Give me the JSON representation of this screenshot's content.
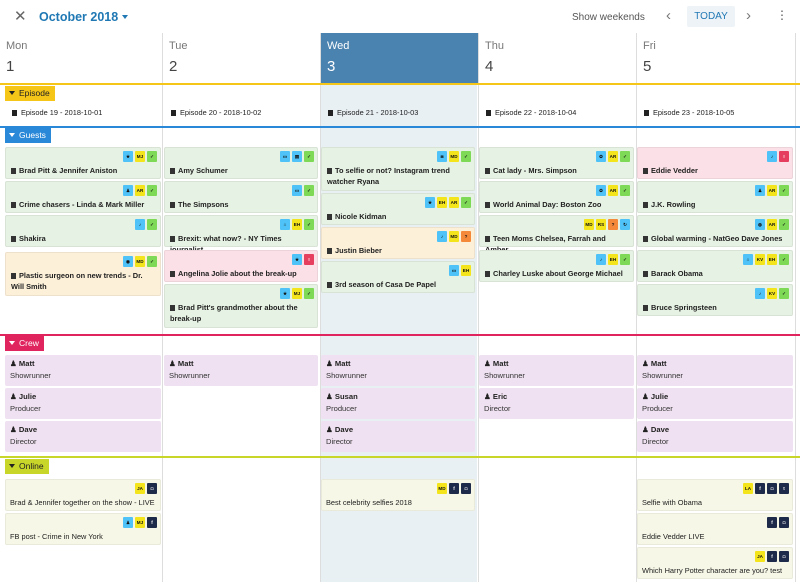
{
  "header": {
    "close_icon": "close-icon",
    "month_label": "October 2018",
    "show_weekends": "Show weekends",
    "today": "TODAY",
    "prev_icon": "chevron-left-icon",
    "next_icon": "chevron-right-icon",
    "more_icon": "more-vertical-icon"
  },
  "days": [
    {
      "name": "Mon",
      "num": "1"
    },
    {
      "name": "Tue",
      "num": "2"
    },
    {
      "name": "Wed",
      "num": "3",
      "active": true
    },
    {
      "name": "Thu",
      "num": "4"
    },
    {
      "name": "Fri",
      "num": "5"
    }
  ],
  "sections": {
    "episode": {
      "label": "Episode",
      "color": "#f5c518"
    },
    "guests": {
      "label": "Guests",
      "color": "#2a88d8"
    },
    "crew": {
      "label": "Crew",
      "color": "#e0245e"
    },
    "online": {
      "label": "Online",
      "color": "#c8d62a"
    }
  },
  "episodes": [
    "Episode 19 - 2018-10-01",
    "Episode 20 - 2018-10-02",
    "Episode 21 - 2018-10-03",
    "Episode 22 - 2018-10-04",
    "Episode 23 - 2018-10-05"
  ],
  "guests": [
    [
      {
        "title": "Brad Pitt & Jennifer Aniston",
        "color": "green",
        "tags": [
          "star",
          "MJ",
          "check"
        ]
      },
      {
        "title": "Crime chasers - Linda & Mark Miller",
        "color": "green",
        "tags": [
          "person",
          "AR",
          "check"
        ]
      },
      {
        "title": "Shakira",
        "color": "green",
        "tags": [
          "note",
          "check"
        ]
      },
      {
        "title": "Plastic surgeon on new trends - Dr. Will Smith",
        "color": "orange",
        "tags": [
          "mic",
          "MD",
          "check"
        ]
      }
    ],
    [
      {
        "title": "Amy Schumer",
        "color": "green",
        "tags": [
          "tv",
          "film",
          "check"
        ]
      },
      {
        "title": "The Simpsons",
        "color": "green",
        "tags": [
          "tv",
          "check"
        ]
      },
      {
        "title": "Brexit: what now? - NY Times journalist",
        "color": "green",
        "tags": [
          "bank",
          "EH",
          "check"
        ]
      },
      {
        "title": "Angelina Jolie about the break-up",
        "color": "pink",
        "tags": [
          "star",
          "excl"
        ]
      },
      {
        "title": "Brad Pitt's grandmother about the break-up",
        "color": "green",
        "tags": [
          "star",
          "MJ",
          "check"
        ]
      }
    ],
    [
      {
        "title": "To selfie or not? Instagram trend watcher Ryana",
        "color": "green",
        "tags": [
          "camera",
          "MD",
          "check"
        ]
      },
      {
        "title": "Nicole Kidman",
        "color": "green",
        "tags": [
          "star",
          "EH",
          "AR",
          "check"
        ]
      },
      {
        "title": "Justin Bieber",
        "color": "orange",
        "tags": [
          "note",
          "MD",
          "q"
        ]
      },
      {
        "title": "3rd season of Casa De Papel",
        "color": "green",
        "tags": [
          "tv",
          "EH"
        ]
      }
    ],
    [
      {
        "title": "Cat lady - Mrs. Simpson",
        "color": "green",
        "tags": [
          "paw",
          "AR",
          "check"
        ]
      },
      {
        "title": "World Animal Day: Boston Zoo",
        "color": "green",
        "tags": [
          "paw",
          "AR",
          "check"
        ]
      },
      {
        "title": "Teen Moms Chelsea, Farrah and Amber",
        "color": "green",
        "tags": [
          "MD",
          "RS",
          "q",
          "refresh"
        ]
      },
      {
        "title": "Charley Luske about George Michael",
        "color": "green",
        "tags": [
          "note",
          "EH",
          "check"
        ]
      }
    ],
    [
      {
        "title": "Eddie Vedder",
        "color": "pink",
        "tags": [
          "note",
          "excl"
        ]
      },
      {
        "title": "J.K. Rowling",
        "color": "green",
        "tags": [
          "person",
          "AR",
          "check"
        ]
      },
      {
        "title": "Global warming - NatGeo Dave Jones",
        "color": "green",
        "tags": [
          "globe",
          "AR",
          "check"
        ]
      },
      {
        "title": "Barack Obama",
        "color": "green",
        "tags": [
          "bank",
          "KV",
          "EH",
          "check"
        ]
      },
      {
        "title": "Bruce Springsteen",
        "color": "green",
        "tags": [
          "note",
          "KV",
          "check"
        ]
      }
    ]
  ],
  "crew": [
    [
      {
        "name": "Matt",
        "role": "Showrunner"
      },
      {
        "name": "Julie",
        "role": "Producer"
      },
      {
        "name": "Dave",
        "role": "Director"
      }
    ],
    [
      {
        "name": "Matt",
        "role": "Showrunner"
      }
    ],
    [
      {
        "name": "Matt",
        "role": "Showrunner"
      },
      {
        "name": "Susan",
        "role": "Producer"
      },
      {
        "name": "Dave",
        "role": "Director"
      }
    ],
    [
      {
        "name": "Matt",
        "role": "Showrunner"
      },
      {
        "name": "Eric",
        "role": "Director"
      }
    ],
    [
      {
        "name": "Matt",
        "role": "Showrunner"
      },
      {
        "name": "Julie",
        "role": "Producer"
      },
      {
        "name": "Dave",
        "role": "Director"
      }
    ]
  ],
  "online": [
    [
      {
        "text": "Brad & Jennifer together on the show - LIVE",
        "tags": [
          "JA",
          "instagram"
        ]
      },
      {
        "text": "FB post - Crime in New York",
        "tags": [
          "person",
          "MJ",
          "facebook"
        ]
      }
    ],
    [],
    [
      {
        "text": "Best celebrity selfies 2018",
        "tags": [
          "MD",
          "facebook",
          "instagram"
        ]
      }
    ],
    [],
    [
      {
        "text": "Selfie with Obama",
        "tags": [
          "LA",
          "facebook",
          "instagram",
          "twitter"
        ]
      },
      {
        "text": "Eddie Vedder LIVE",
        "tags": [
          "facebook",
          "instagram"
        ]
      },
      {
        "text": "Which Harry Potter character are you? test",
        "tags": [
          "JA",
          "facebook",
          "instagram"
        ]
      }
    ]
  ],
  "colors": {
    "green": "#e6f2e3",
    "orange": "#fdf0d9",
    "pink": "#fbe0e7",
    "lilac": "#efe1f1",
    "online": "#f6f7e6",
    "active": "#4a82b0"
  }
}
